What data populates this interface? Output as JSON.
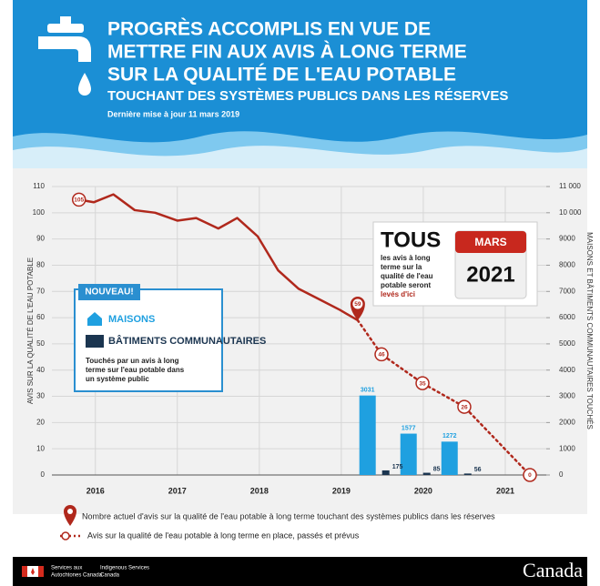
{
  "header": {
    "title_lines": [
      "PROGRÈS ACCOMPLIS EN VUE DE",
      "METTRE FIN AUX AVIS À LONG TERME",
      "SUR LA QUALITÉ DE L'EAU POTABLE"
    ],
    "subtitle": "TOUCHANT DES SYSTÈMES PUBLICS DANS LES RÉSERVES",
    "updated": "Dernière mise à jour 11 mars 2019"
  },
  "chart_data": {
    "type": "line",
    "y_label": "AVIS SUR LA QUALITÉ DE L'EAU POTABLE",
    "y2_label": "MAISONS ET BÂTIMENTS COMMUNAUTAIRES TOUCHÉS",
    "xlim": [
      2015.47,
      2021.5
    ],
    "xticks": [
      2016,
      2017,
      2018,
      2019,
      2020,
      2021
    ],
    "ylim": [
      0,
      110
    ],
    "yticks": [
      0,
      10,
      20,
      30,
      40,
      50,
      60,
      70,
      80,
      90,
      100,
      110
    ],
    "y2lim": [
      0,
      11000
    ],
    "y2ticks": [
      0,
      1000,
      2000,
      3000,
      4000,
      5000,
      6000,
      7000,
      8000,
      9000,
      {
        "value": 10000,
        "label": "10 000"
      },
      {
        "value": 11000,
        "label": "11 000"
      }
    ],
    "grid": true,
    "series": [
      {
        "name": "Avis sur la qualité de l'eau potable à long terme en place, passés et prévus",
        "type": "line",
        "style": "solid",
        "color": "#b0281c",
        "x": [
          2015.8,
          2015.98,
          2016.22,
          2016.48,
          2016.73,
          2017.0,
          2017.23,
          2017.5,
          2017.73,
          2017.98,
          2018.23,
          2018.48,
          2018.73,
          2018.98,
          2019.2
        ],
        "values": [
          105,
          104,
          107,
          101,
          100,
          97,
          98,
          94,
          98,
          91,
          78,
          71,
          67,
          63,
          59
        ]
      },
      {
        "type": "line",
        "style": "dotted",
        "color": "#b0281c",
        "x": [
          2019.2,
          2019.49,
          2019.99,
          2020.5,
          2021.3
        ],
        "values": [
          59,
          46,
          35,
          26,
          0
        ]
      },
      {
        "name": "MAISONS",
        "type": "bar",
        "axis": "y2",
        "color": "#1fa0e0",
        "x": [
          2019.42,
          2019.92,
          2020.42
        ],
        "values": [
          3031,
          1577,
          1272
        ]
      },
      {
        "name": "BÂTIMENTS COMMUNAUTAIRES",
        "type": "bar",
        "axis": "y2",
        "color": "#1b3550",
        "x": [
          2019.42,
          2019.92,
          2020.42
        ],
        "values": [
          175,
          85,
          56
        ]
      }
    ],
    "current_marker": {
      "label": "Nombre actuel d'avis sur la qualité de l'eau potable à long terme touchant des systèmes publics dans les réserves",
      "x": 2019.2,
      "value": 59
    }
  },
  "callout_new": {
    "badge": "NOUVEAU!",
    "text_lines": [
      "Touchés par un avis à long",
      "terme sur l'eau potable dans",
      "un système public"
    ]
  },
  "callout_goal": {
    "headline": "TOUS",
    "text_lines": [
      "les avis à long",
      "terme sur la",
      "qualité de l'eau",
      "potable seront"
    ],
    "emphasis": "levés d'ici",
    "month": "MARS",
    "year": "2021"
  },
  "footer": {
    "dept_fr": [
      "Services aux",
      "Autochtones Canada"
    ],
    "dept_en": [
      "Indigenous Services",
      "Canada"
    ],
    "wordmark": "Canada"
  }
}
